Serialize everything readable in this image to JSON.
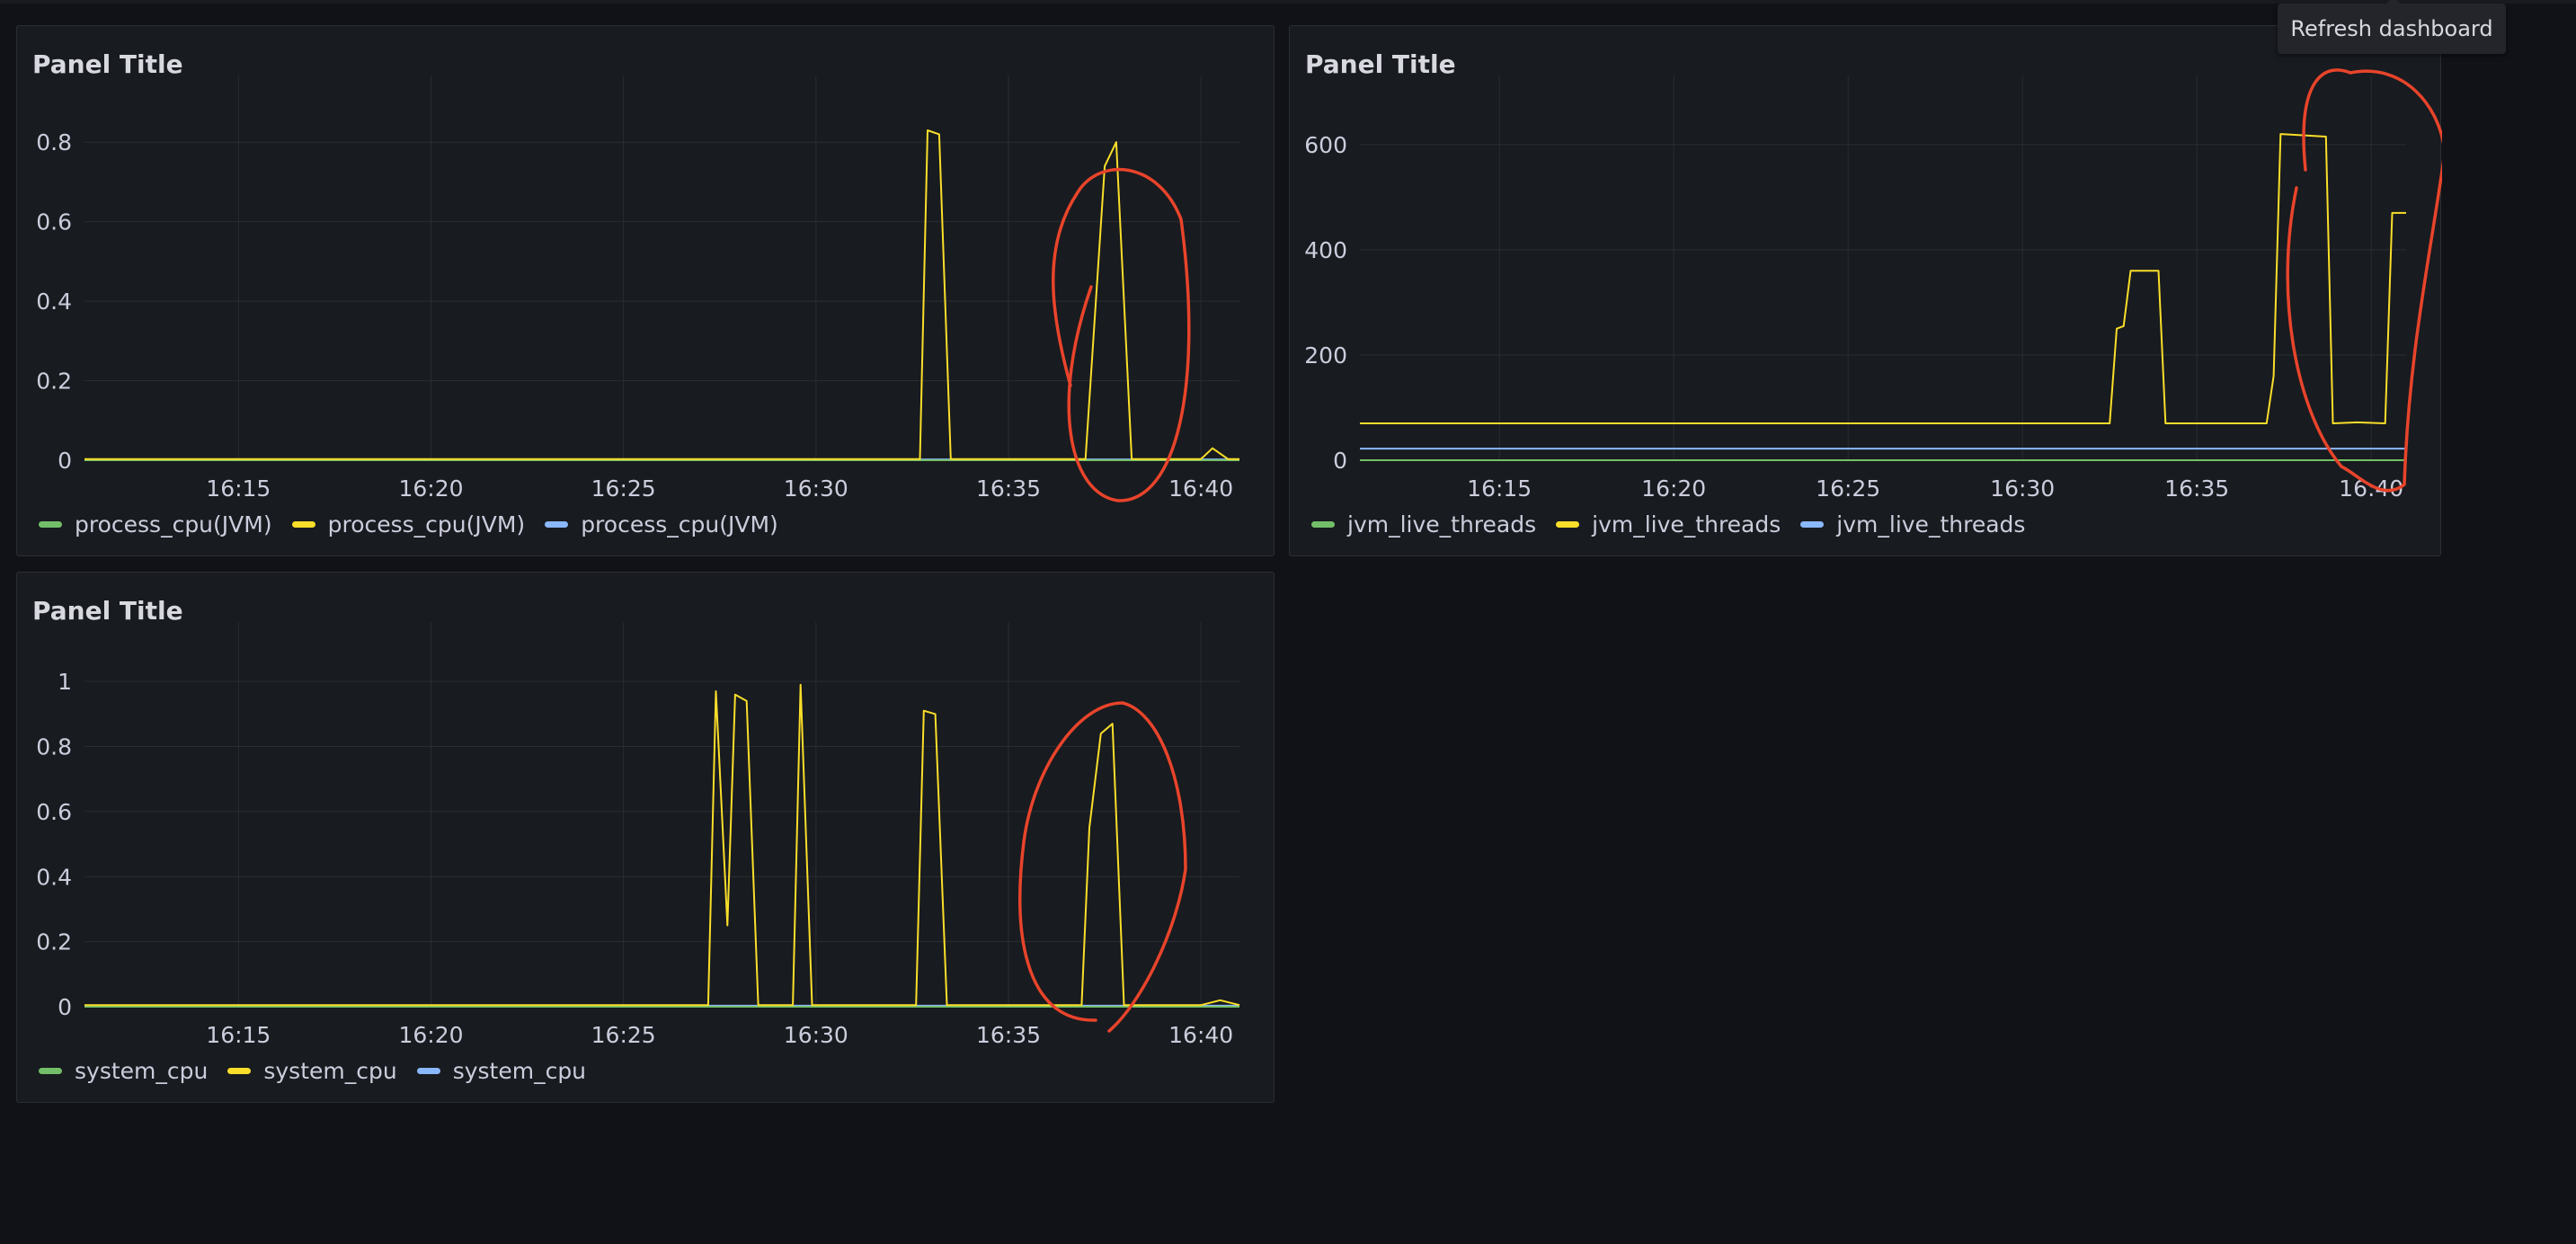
{
  "tooltip": {
    "label": "Refresh dashboard"
  },
  "colors": {
    "green": "#73bf69",
    "yellow": "#fade2a",
    "blue": "#8ab8ff",
    "annotation": "#e8442b"
  },
  "panels": [
    {
      "title": "Panel Title",
      "legend": [
        {
          "label": "process_cpu(JVM)",
          "color": "green"
        },
        {
          "label": "process_cpu(JVM)",
          "color": "yellow"
        },
        {
          "label": "process_cpu(JVM)",
          "color": "blue"
        }
      ]
    },
    {
      "title": "Panel Title",
      "legend": [
        {
          "label": "jvm_live_threads",
          "color": "green"
        },
        {
          "label": "jvm_live_threads",
          "color": "yellow"
        },
        {
          "label": "jvm_live_threads",
          "color": "blue"
        }
      ]
    },
    {
      "title": "Panel Title",
      "legend": [
        {
          "label": "system_cpu",
          "color": "green"
        },
        {
          "label": "system_cpu",
          "color": "yellow"
        },
        {
          "label": "system_cpu",
          "color": "blue"
        }
      ]
    }
  ],
  "chart_data": [
    {
      "type": "line",
      "x_ticks": [
        "16:15",
        "16:20",
        "16:25",
        "16:30",
        "16:35",
        "16:40"
      ],
      "y_ticks": [
        "0",
        "0.2",
        "0.4",
        "0.6",
        "0.8"
      ],
      "ylim": [
        0,
        0.9
      ],
      "xlim": [
        "16:11",
        "16:41"
      ],
      "grid": true,
      "legend_placement": "bottom-left",
      "annotation": "red ellipse around spike near 16:37",
      "series": [
        {
          "color": "green",
          "x": [
            "16:11",
            "16:41"
          ],
          "y": [
            0,
            0
          ]
        },
        {
          "color": "yellow",
          "x": [
            "16:11",
            "16:32.7",
            "16:32.9",
            "16:33.2",
            "16:33.5",
            "16:37.0",
            "16:37.5",
            "16:37.8",
            "16:38.2",
            "16:40.0",
            "16:40.3",
            "16:40.7",
            "16:41"
          ],
          "y": [
            0.003,
            0.003,
            0.83,
            0.82,
            0.003,
            0.003,
            0.74,
            0.8,
            0.003,
            0.003,
            0.03,
            0.003,
            0.003
          ]
        },
        {
          "color": "blue",
          "x": [
            "16:11",
            "16:41"
          ],
          "y": [
            0.002,
            0.002
          ]
        }
      ]
    },
    {
      "type": "line",
      "x_ticks": [
        "16:15",
        "16:20",
        "16:25",
        "16:30",
        "16:35",
        "16:40"
      ],
      "y_ticks": [
        "0",
        "200",
        "400",
        "600"
      ],
      "ylim": [
        0,
        680
      ],
      "xlim": [
        "16:11",
        "16:41"
      ],
      "grid": true,
      "legend_placement": "bottom-left",
      "annotation": "red ellipse around plateau near 16:38",
      "series": [
        {
          "color": "green",
          "x": [
            "16:11",
            "16:41"
          ],
          "y": [
            0,
            0
          ]
        },
        {
          "color": "yellow",
          "x": [
            "16:11",
            "16:32.5",
            "16:32.7",
            "16:32.9",
            "16:33.1",
            "16:33.9",
            "16:34.1",
            "16:37.0",
            "16:37.2",
            "16:37.4",
            "16:38.7",
            "16:38.9",
            "16:39.6",
            "16:40.4",
            "16:40.6",
            "16:41"
          ],
          "y": [
            70,
            70,
            250,
            255,
            360,
            360,
            70,
            70,
            160,
            620,
            615,
            70,
            72,
            70,
            470,
            470
          ]
        },
        {
          "color": "blue",
          "x": [
            "16:11",
            "16:41"
          ],
          "y": [
            22,
            22
          ]
        }
      ]
    },
    {
      "type": "line",
      "x_ticks": [
        "16:15",
        "16:20",
        "16:25",
        "16:30",
        "16:35",
        "16:40"
      ],
      "y_ticks": [
        "0",
        "0.2",
        "0.4",
        "0.6",
        "0.8",
        "1"
      ],
      "ylim": [
        0,
        1.1
      ],
      "xlim": [
        "16:11",
        "16:41"
      ],
      "grid": true,
      "legend_placement": "bottom-left",
      "annotation": "red ellipse around spike near 16:37",
      "series": [
        {
          "color": "green",
          "x": [
            "16:11",
            "16:41"
          ],
          "y": [
            0,
            0
          ]
        },
        {
          "color": "yellow",
          "x": [
            "16:11",
            "16:27.2",
            "16:27.4",
            "16:27.7",
            "16:27.9",
            "16:28.2",
            "16:28.5",
            "16:29.4",
            "16:29.6",
            "16:29.9",
            "16:32.6",
            "16:32.8",
            "16:33.1",
            "16:33.4",
            "16:36.9",
            "16:37.1",
            "16:37.4",
            "16:37.7",
            "16:38.0",
            "16:40.0",
            "16:40.5",
            "16:41"
          ],
          "y": [
            0.005,
            0.005,
            0.97,
            0.25,
            0.96,
            0.94,
            0.005,
            0.005,
            0.99,
            0.005,
            0.005,
            0.91,
            0.9,
            0.005,
            0.005,
            0.55,
            0.84,
            0.87,
            0.005,
            0.005,
            0.02,
            0.005
          ]
        },
        {
          "color": "blue",
          "x": [
            "16:11",
            "16:41"
          ],
          "y": [
            0.003,
            0.003
          ]
        }
      ]
    }
  ]
}
